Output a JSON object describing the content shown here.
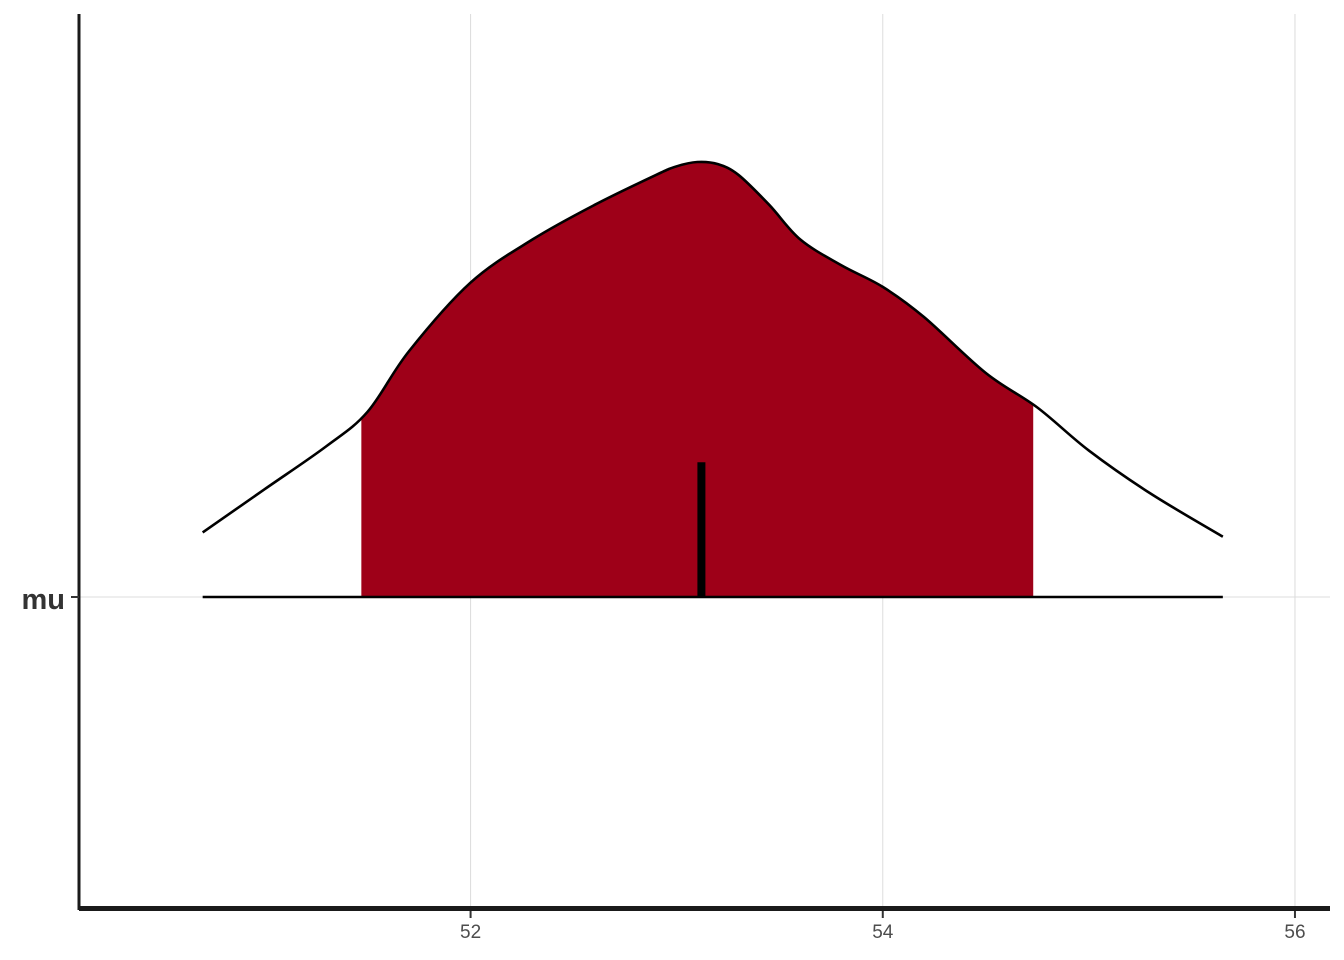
{
  "chart_data": {
    "type": "area",
    "parameter": "mu",
    "x_ticks": [
      52,
      54,
      56
    ],
    "xlim": [
      50.1,
      56.17
    ],
    "density": {
      "x": [
        50.7,
        51.0,
        51.3,
        51.5,
        51.7,
        52.0,
        52.3,
        52.6,
        52.9,
        53.0,
        53.1,
        53.2,
        53.3,
        53.45,
        53.6,
        53.8,
        54.0,
        54.2,
        54.5,
        54.75,
        55.0,
        55.3,
        55.65
      ],
      "y": [
        0.15,
        0.25,
        0.35,
        0.43,
        0.57,
        0.73,
        0.83,
        0.91,
        0.98,
        1.0,
        1.01,
        1.005,
        0.98,
        0.91,
        0.83,
        0.77,
        0.72,
        0.65,
        0.52,
        0.44,
        0.34,
        0.24,
        0.14
      ]
    },
    "interval": [
      51.47,
      54.73
    ],
    "point_estimate": 53.12,
    "fill_color": "#9e0018",
    "line_color": "#000000",
    "grid": true
  }
}
